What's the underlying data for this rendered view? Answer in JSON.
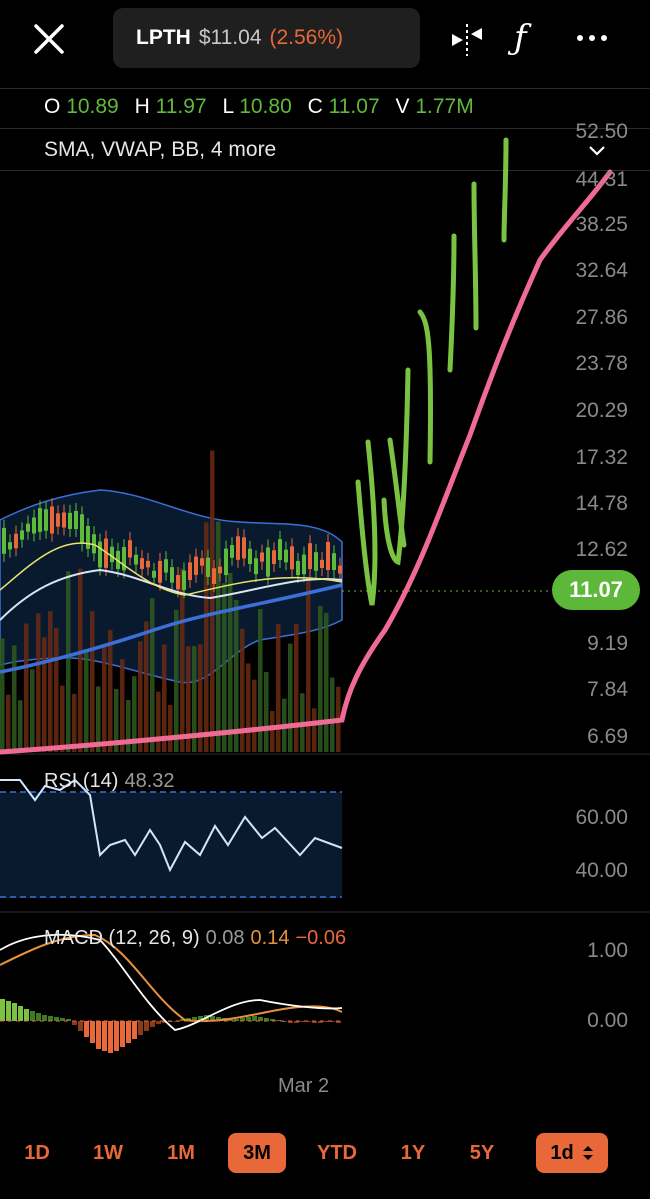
{
  "header": {
    "symbol": "LPTH",
    "price": "$11.04",
    "change": "(2.56%)"
  },
  "ohlcv": [
    {
      "key": "O",
      "value": "10.89"
    },
    {
      "key": "H",
      "value": "11.97"
    },
    {
      "key": "L",
      "value": "10.80"
    },
    {
      "key": "C",
      "value": "11.07"
    },
    {
      "key": "V",
      "value": "1.77M"
    }
  ],
  "indicators_label": "SMA, VWAP, BB, 4 more",
  "price_axis": [
    "52.50",
    "44.31",
    "38.25",
    "32.64",
    "27.86",
    "23.78",
    "20.29",
    "17.32",
    "14.78",
    "12.62",
    "9.19",
    "7.84",
    "6.69"
  ],
  "current_price": "11.07",
  "rsi": {
    "label": "RSI (14)",
    "value": "48.32",
    "axis": [
      "60.00",
      "40.00"
    ]
  },
  "macd": {
    "label": "MACD (12, 26, 9)",
    "v1": "0.08",
    "v2": "0.14",
    "v3": "−0.06",
    "axis": [
      "1.00",
      "0.00"
    ]
  },
  "x_axis_label": "Mar 2",
  "ranges": [
    {
      "label": "1D",
      "selected": false
    },
    {
      "label": "1W",
      "selected": false
    },
    {
      "label": "1M",
      "selected": false
    },
    {
      "label": "3M",
      "selected": true
    },
    {
      "label": "YTD",
      "selected": false
    },
    {
      "label": "1Y",
      "selected": false
    },
    {
      "label": "5Y",
      "selected": false
    }
  ],
  "interval": "1d",
  "icons": {
    "close": "close-icon",
    "draw": "draw-tool-icon",
    "function": "function-icon",
    "more": "more-icon",
    "chevron": "chevron-down-icon"
  },
  "colors": {
    "up": "#5fb93a",
    "down": "#e8683a",
    "accent": "#e8683a",
    "badge": "#5db83a",
    "drawing_pink": "#f06a96"
  }
}
